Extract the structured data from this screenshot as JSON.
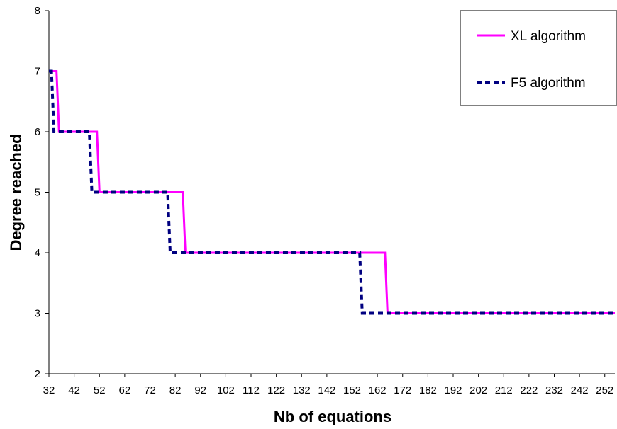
{
  "chart_data": {
    "type": "line",
    "xlabel": "Nb of equations",
    "ylabel": "Degree reached",
    "xlim": [
      32,
      256
    ],
    "ylim": [
      2,
      8
    ],
    "x_ticks": [
      32,
      42,
      52,
      62,
      72,
      82,
      92,
      102,
      112,
      122,
      132,
      142,
      152,
      162,
      172,
      182,
      192,
      202,
      212,
      222,
      232,
      242,
      252
    ],
    "y_ticks": [
      2,
      3,
      4,
      5,
      6,
      7,
      8
    ],
    "grid": false,
    "legend": "top-right",
    "series": [
      {
        "name": "XL algorithm",
        "color": "#ff00ff",
        "style": "solid",
        "x": [
          32,
          35,
          36,
          51,
          52,
          85,
          86,
          165,
          166,
          256
        ],
        "y": [
          7,
          7,
          6,
          6,
          5,
          5,
          4,
          4,
          3,
          3
        ]
      },
      {
        "name": "F5 algorithm",
        "color": "#000080",
        "style": "dashed",
        "x": [
          32,
          33,
          34,
          48,
          49,
          79,
          80,
          155,
          156,
          256
        ],
        "y": [
          7,
          7,
          6,
          6,
          5,
          5,
          4,
          4,
          3,
          3
        ]
      }
    ]
  }
}
